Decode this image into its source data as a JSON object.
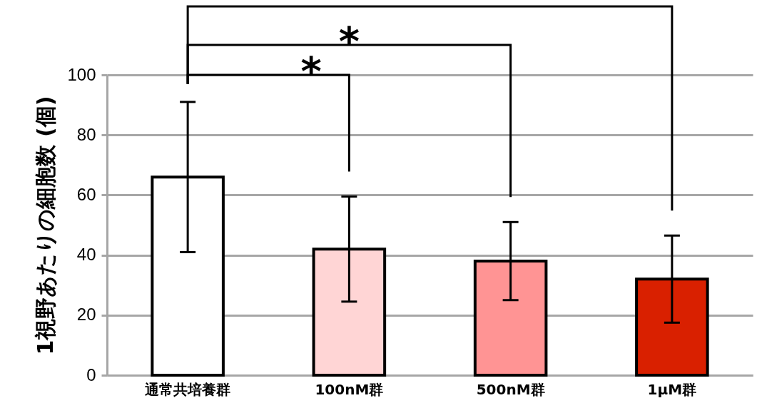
{
  "chart_data": {
    "type": "bar",
    "ylabel": "1視野あたりの細胞数 (個)",
    "categories": [
      "通常共培養群",
      "100nM群",
      "500nM群",
      "1μM群"
    ],
    "values": [
      66,
      42,
      38,
      32
    ],
    "colors": [
      "#ffffff",
      "#ffd5d5",
      "#ff9494",
      "#d92000"
    ],
    "errors": [
      25,
      17.5,
      13,
      14.5
    ],
    "ylim": [
      0,
      100
    ],
    "yticks": [
      0,
      20,
      40,
      60,
      80,
      100
    ],
    "grid": "y",
    "annotations": [
      "*",
      "*"
    ]
  }
}
